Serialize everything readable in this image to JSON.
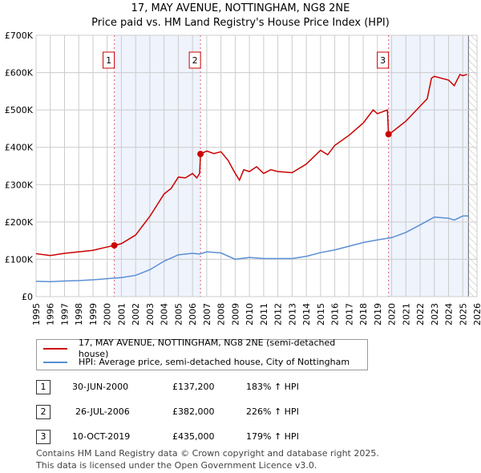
{
  "chart_data": {
    "type": "line",
    "title": "17, MAY AVENUE, NOTTINGHAM, NG8 2NE",
    "subtitle": "Price paid vs. HM Land Registry's House Price Index (HPI)",
    "xlim": [
      1995,
      2026
    ],
    "ylim": [
      0,
      700000
    ],
    "x_ticks": [
      "1995",
      "1996",
      "1997",
      "1998",
      "1999",
      "2000",
      "2001",
      "2002",
      "2003",
      "2004",
      "2005",
      "2006",
      "2007",
      "2008",
      "2009",
      "2010",
      "2011",
      "2012",
      "2013",
      "2014",
      "2015",
      "2016",
      "2017",
      "2018",
      "2019",
      "2020",
      "2021",
      "2022",
      "2023",
      "2024",
      "2025",
      "2026"
    ],
    "y_ticks": [
      {
        "v": 0,
        "label": "£0"
      },
      {
        "v": 100000,
        "label": "£100K"
      },
      {
        "v": 200000,
        "label": "£200K"
      },
      {
        "v": 300000,
        "label": "£300K"
      },
      {
        "v": 400000,
        "label": "£400K"
      },
      {
        "v": 500000,
        "label": "£500K"
      },
      {
        "v": 600000,
        "label": "£600K"
      },
      {
        "v": 700000,
        "label": "£700K"
      }
    ],
    "grid": true,
    "shaded_ranges": [
      [
        2000.5,
        2006.56
      ],
      [
        2019.78,
        2025.4
      ]
    ],
    "hatched_range": [
      2025.4,
      2026
    ],
    "series": [
      {
        "name": "17, MAY AVENUE, NOTTINGHAM, NG8 2NE (semi-detached house)",
        "color": "#cc0000",
        "x": [
          1995,
          1996,
          1997,
          1998,
          1999,
          2000,
          2000.5,
          2001,
          2002,
          2003,
          2004,
          2004.5,
          2005,
          2005.5,
          2006,
          2006.3,
          2006.5,
          2006.56,
          2007,
          2007.5,
          2008,
          2008.5,
          2009,
          2009.3,
          2009.6,
          2010,
          2010.5,
          2011,
          2011.5,
          2012,
          2013,
          2014,
          2015,
          2015.5,
          2016,
          2017,
          2018,
          2018.7,
          2019,
          2019.7,
          2019.78,
          2020,
          2021,
          2022,
          2022.5,
          2022.8,
          2023,
          2023.5,
          2024,
          2024.4,
          2024.8,
          2025,
          2025.3
        ],
        "y": [
          115000,
          110000,
          116000,
          120000,
          124000,
          133000,
          137200,
          142000,
          165000,
          215000,
          275000,
          290000,
          320000,
          318000,
          330000,
          318000,
          330000,
          382000,
          390000,
          383000,
          388000,
          365000,
          330000,
          312000,
          340000,
          335000,
          348000,
          330000,
          340000,
          335000,
          332000,
          355000,
          392000,
          380000,
          405000,
          432000,
          465000,
          500000,
          490000,
          500000,
          435000,
          440000,
          470000,
          510000,
          530000,
          585000,
          590000,
          585000,
          580000,
          565000,
          595000,
          592000,
          595000
        ]
      },
      {
        "name": "HPI: Average price, semi-detached house, City of Nottingham",
        "color": "#5b8fd4",
        "x": [
          1995,
          1996,
          1997,
          1998,
          1999,
          2000,
          2001,
          2002,
          2003,
          2004,
          2005,
          2006,
          2006.5,
          2007,
          2008,
          2009,
          2010,
          2011,
          2012,
          2013,
          2014,
          2015,
          2016,
          2017,
          2018,
          2019,
          2020,
          2021,
          2022,
          2023,
          2024,
          2024.4,
          2025,
          2025.4
        ],
        "y": [
          41000,
          40000,
          42000,
          43000,
          45000,
          48000,
          51000,
          57000,
          72000,
          95000,
          112000,
          116000,
          114000,
          120000,
          117000,
          100000,
          105000,
          102000,
          102000,
          102000,
          108000,
          118000,
          125000,
          135000,
          145000,
          152000,
          158000,
          172000,
          192000,
          213000,
          210000,
          205000,
          216000,
          216000
        ]
      }
    ],
    "sales": [
      {
        "label": "1",
        "x": 2000.5,
        "y": 137200
      },
      {
        "label": "2",
        "x": 2006.56,
        "y": 382000
      },
      {
        "label": "3",
        "x": 2019.78,
        "y": 435000
      }
    ]
  },
  "legend": {
    "property": "17, MAY AVENUE, NOTTINGHAM, NG8 2NE (semi-detached house)",
    "hpi": "HPI: Average price, semi-detached house, City of Nottingham"
  },
  "transactions": [
    {
      "num": "1",
      "date": "30-JUN-2000",
      "price": "£137,200",
      "hpi": "183% ↑ HPI"
    },
    {
      "num": "2",
      "date": "26-JUL-2006",
      "price": "£382,000",
      "hpi": "226% ↑ HPI"
    },
    {
      "num": "3",
      "date": "10-OCT-2019",
      "price": "£435,000",
      "hpi": "179% ↑ HPI"
    }
  ],
  "footer": {
    "line1": "Contains HM Land Registry data © Crown copyright and database right 2025.",
    "line2": "This data is licensed under the Open Government Licence v3.0."
  }
}
